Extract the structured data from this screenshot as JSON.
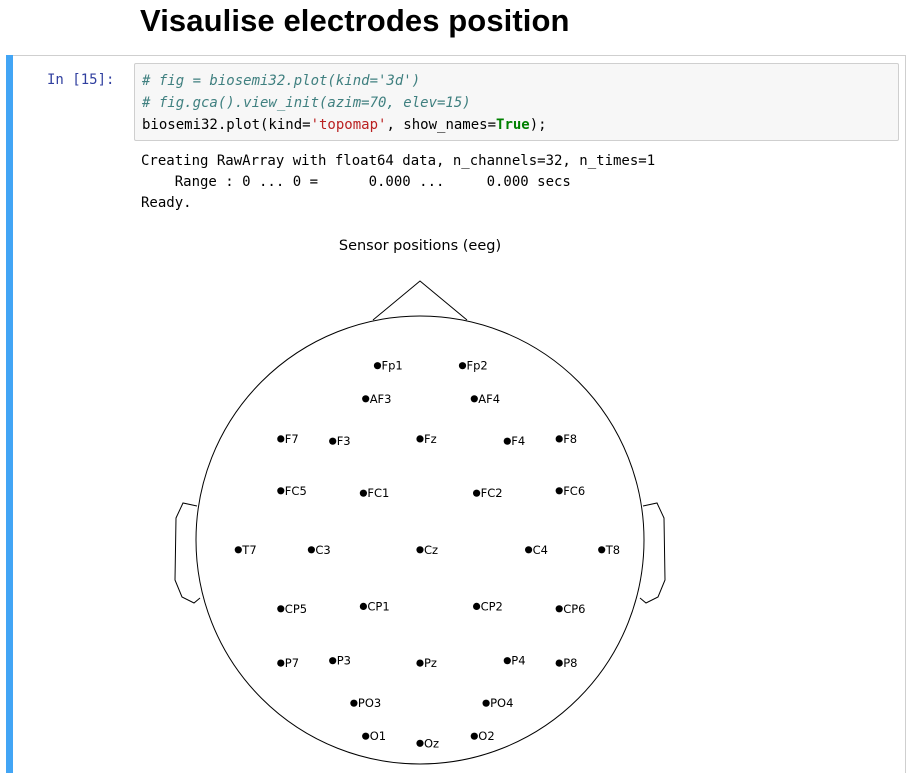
{
  "heading": "Visaulise electrodes position",
  "cell": {
    "prompt": "In  [15]:",
    "code": {
      "line1": "# fig = biosemi32.plot(kind='3d')",
      "line2": "# fig.gca().view_init(azim=70, elev=15)",
      "line3_prefix": "biosemi32.plot(kind=",
      "line3_string": "'topomap'",
      "line3_middle": ", show_names=",
      "line3_keyword": "True",
      "line3_suffix": ");"
    },
    "output": {
      "line1": "Creating RawArray with float64 data, n_channels=32, n_times=1",
      "line2": "    Range : 0 ... 0 =      0.000 ...     0.000 secs",
      "line3": "Ready."
    }
  },
  "chart_data": {
    "type": "scatter",
    "title": "Sensor positions (eeg)",
    "channels": [
      {
        "name": "Fp1",
        "x": -0.18,
        "y": 0.73
      },
      {
        "name": "Fp2",
        "x": 0.18,
        "y": 0.73
      },
      {
        "name": "AF3",
        "x": -0.23,
        "y": 0.59
      },
      {
        "name": "AF4",
        "x": 0.23,
        "y": 0.59
      },
      {
        "name": "F7",
        "x": -0.59,
        "y": 0.42
      },
      {
        "name": "F3",
        "x": -0.37,
        "y": 0.41
      },
      {
        "name": "Fz",
        "x": 0.0,
        "y": 0.42
      },
      {
        "name": "F4",
        "x": 0.37,
        "y": 0.41
      },
      {
        "name": "F8",
        "x": 0.59,
        "y": 0.42
      },
      {
        "name": "FC5",
        "x": -0.59,
        "y": 0.2
      },
      {
        "name": "FC1",
        "x": -0.24,
        "y": 0.19
      },
      {
        "name": "FC2",
        "x": 0.24,
        "y": 0.19
      },
      {
        "name": "FC6",
        "x": 0.59,
        "y": 0.2
      },
      {
        "name": "T7",
        "x": -0.77,
        "y": -0.05
      },
      {
        "name": "C3",
        "x": -0.46,
        "y": -0.05
      },
      {
        "name": "Cz",
        "x": 0.0,
        "y": -0.05
      },
      {
        "name": "C4",
        "x": 0.46,
        "y": -0.05
      },
      {
        "name": "T8",
        "x": 0.77,
        "y": -0.05
      },
      {
        "name": "CP5",
        "x": -0.59,
        "y": -0.3
      },
      {
        "name": "CP1",
        "x": -0.24,
        "y": -0.29
      },
      {
        "name": "CP2",
        "x": 0.24,
        "y": -0.29
      },
      {
        "name": "CP6",
        "x": 0.59,
        "y": -0.3
      },
      {
        "name": "P7",
        "x": -0.59,
        "y": -0.53
      },
      {
        "name": "P3",
        "x": -0.37,
        "y": -0.52
      },
      {
        "name": "Pz",
        "x": 0.0,
        "y": -0.53
      },
      {
        "name": "P4",
        "x": 0.37,
        "y": -0.52
      },
      {
        "name": "P8",
        "x": 0.59,
        "y": -0.53
      },
      {
        "name": "PO3",
        "x": -0.28,
        "y": -0.7
      },
      {
        "name": "PO4",
        "x": 0.28,
        "y": -0.7
      },
      {
        "name": "O1",
        "x": -0.23,
        "y": -0.84
      },
      {
        "name": "Oz",
        "x": 0.0,
        "y": -0.87
      },
      {
        "name": "O2",
        "x": 0.23,
        "y": -0.84
      }
    ]
  }
}
